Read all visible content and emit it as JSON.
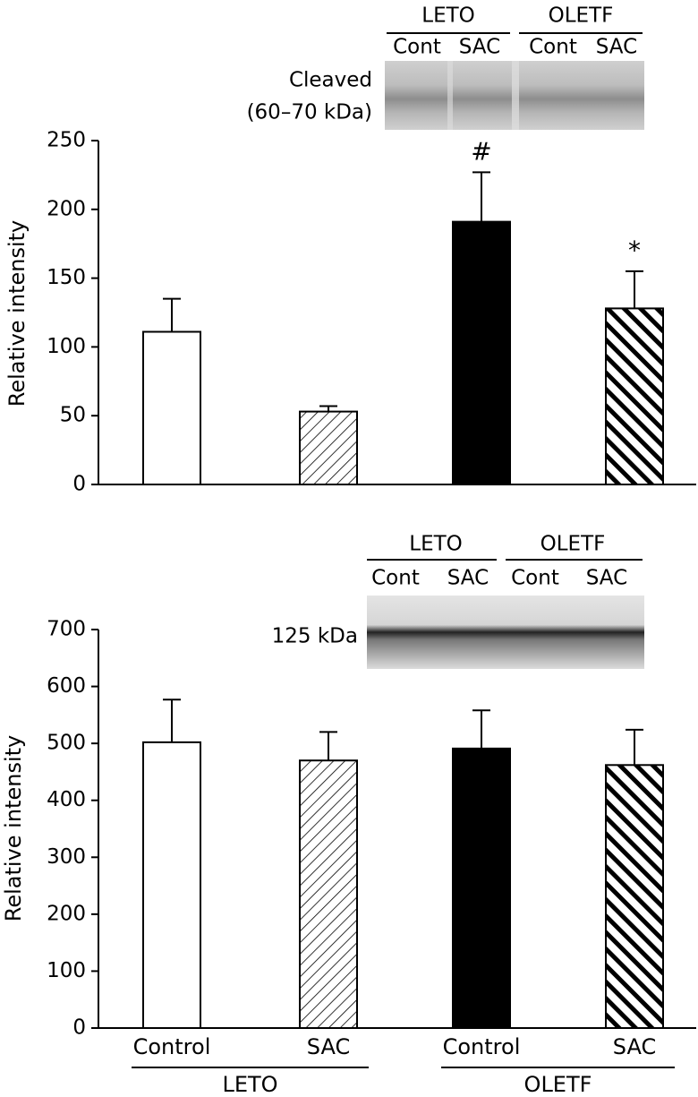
{
  "chart_data": [
    {
      "type": "bar",
      "ylabel": "Relative intensity",
      "values": [
        111,
        53,
        191,
        128
      ],
      "errors": [
        24,
        4,
        36,
        27
      ],
      "annotations": [
        null,
        null,
        "#",
        "*"
      ],
      "fills": [
        "white",
        "light-hatch",
        "black",
        "heavy-hatch"
      ],
      "ylim": [
        0,
        250
      ],
      "yticks": [
        0,
        50,
        100,
        150,
        200,
        250
      ],
      "blot": {
        "groups": [
          "LETO",
          "OLETF"
        ],
        "lanes": [
          "Cont",
          "SAC",
          "Cont",
          "SAC"
        ],
        "label": [
          "Cleaved",
          "(60–70 kDa)"
        ]
      }
    },
    {
      "type": "bar",
      "ylabel": "Relative intensity",
      "categories": [
        "Control",
        "SAC",
        "Control",
        "SAC"
      ],
      "groups": [
        "LETO",
        "OLETF"
      ],
      "values": [
        502,
        470,
        491,
        462
      ],
      "errors": [
        75,
        50,
        67,
        62
      ],
      "fills": [
        "white",
        "light-hatch",
        "black",
        "heavy-hatch"
      ],
      "ylim": [
        0,
        700
      ],
      "yticks": [
        0,
        100,
        200,
        300,
        400,
        500,
        600,
        700
      ],
      "blot": {
        "groups": [
          "LETO",
          "OLETF"
        ],
        "lanes": [
          "Cont",
          "SAC",
          "Cont",
          "SAC"
        ],
        "label": [
          "125 kDa"
        ]
      }
    }
  ]
}
